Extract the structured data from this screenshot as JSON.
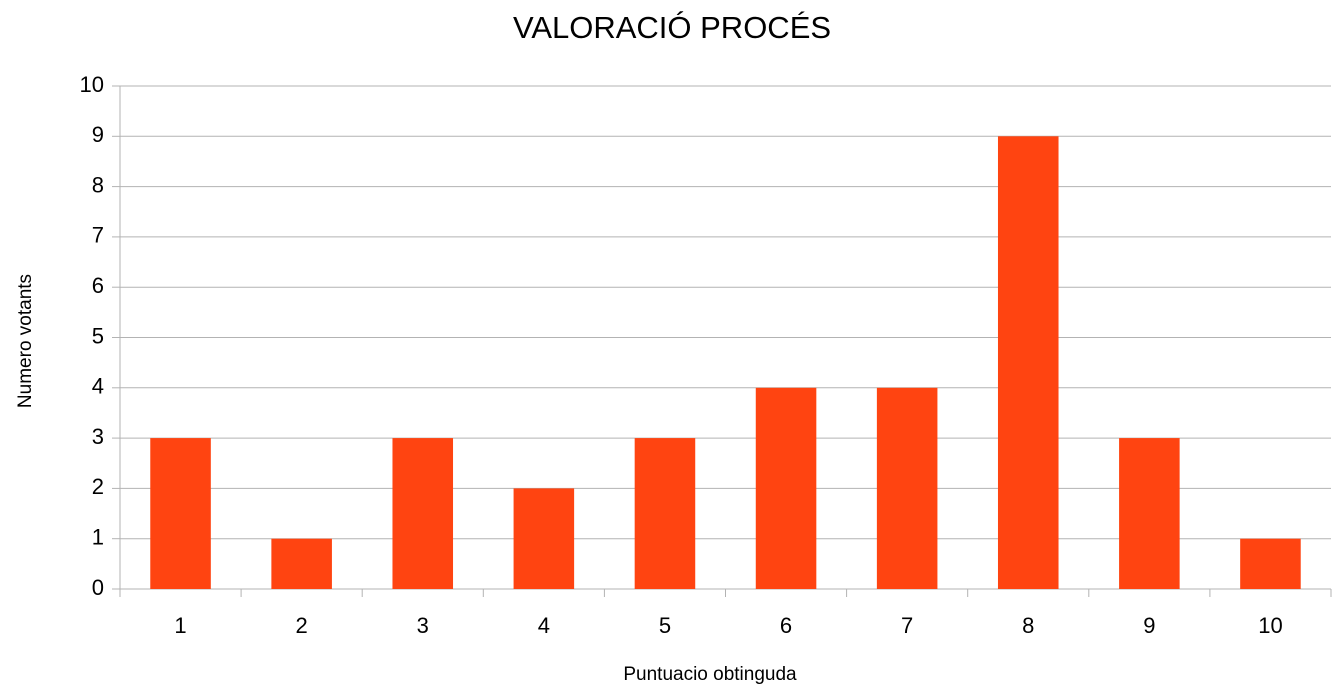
{
  "chart_data": {
    "type": "bar",
    "title": "VALORACIÓ  PROCÉS",
    "x_label": "Puntuacio obtinguda",
    "y_label": "Numero votants",
    "categories": [
      "1",
      "2",
      "3",
      "4",
      "5",
      "6",
      "7",
      "8",
      "9",
      "10"
    ],
    "values": [
      3,
      1,
      3,
      2,
      3,
      4,
      4,
      9,
      3,
      1
    ],
    "color": "#ff4411",
    "ylim": [
      0,
      10
    ],
    "yticks": [
      0,
      1,
      2,
      3,
      4,
      5,
      6,
      7,
      8,
      9,
      10
    ],
    "grid": true
  }
}
